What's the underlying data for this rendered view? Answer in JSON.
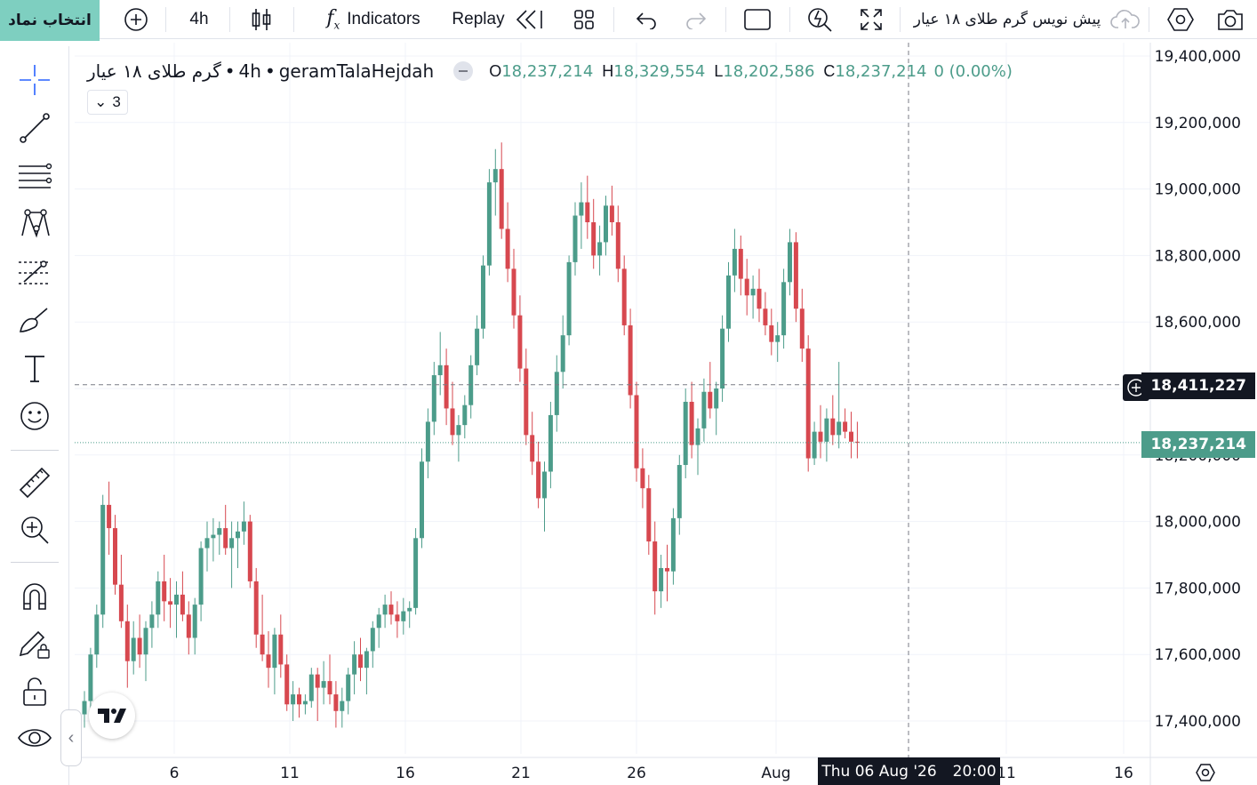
{
  "topbar": {
    "select_symbol": "انتخاب نماد",
    "interval": "4h",
    "indicators": "Indicators",
    "replay": "Replay",
    "layout_name": "پیش نویس گرم طلای ۱۸ عیار"
  },
  "legend": {
    "symbol_fa": "گرم طلای ۱۸ عیار",
    "symbol_sep": "•",
    "interval": "4h",
    "ticker": "geramTalaHejdah",
    "o_label": "O",
    "o_value": "18,237,214",
    "h_label": "H",
    "h_value": "18,329,554",
    "l_label": "L",
    "l_value": "18,202,586",
    "c_label": "C",
    "c_value": "18,237,214",
    "change": "0 (0.00%)",
    "collapsed_count": "3"
  },
  "price_scale": {
    "labels": [
      "19,400,000",
      "19,200,000",
      "19,000,000",
      "18,800,000",
      "18,600,000",
      "18,400,000",
      "18,200,000",
      "18,000,000",
      "17,800,000",
      "17,600,000",
      "17,400,000"
    ],
    "crosshair_price": "18,411,227",
    "last_price": "18,237,214"
  },
  "time_scale": {
    "labels": [
      "6",
      "11",
      "16",
      "21",
      "26",
      "Aug",
      "11",
      "16"
    ],
    "crosshair_date": "Thu 06 Aug '26",
    "crosshair_time": "20:00"
  },
  "colors": {
    "up": "#4c9c8a",
    "down": "#d7484f",
    "accent": "#7ecfc0",
    "crosshair": "#131722"
  },
  "chart_data": {
    "type": "candlestick",
    "title": "geramTalaHejdah",
    "interval": "4h",
    "ylim": [
      17300000,
      19450000
    ],
    "x_tick_labels": [
      "6",
      "11",
      "16",
      "21",
      "26",
      "Aug",
      "11",
      "16"
    ],
    "candles": [
      [
        17420000,
        17490000,
        17380000,
        17460000
      ],
      [
        17460000,
        17620000,
        17420000,
        17600000
      ],
      [
        17600000,
        17750000,
        17560000,
        17720000
      ],
      [
        17720000,
        18080000,
        17680000,
        18050000
      ],
      [
        18050000,
        18120000,
        17900000,
        17980000
      ],
      [
        17980000,
        18020000,
        17780000,
        17810000
      ],
      [
        17810000,
        17900000,
        17680000,
        17700000
      ],
      [
        17700000,
        17750000,
        17500000,
        17580000
      ],
      [
        17580000,
        17700000,
        17540000,
        17650000
      ],
      [
        17650000,
        17720000,
        17560000,
        17600000
      ],
      [
        17600000,
        17700000,
        17520000,
        17680000
      ],
      [
        17680000,
        17760000,
        17620000,
        17720000
      ],
      [
        17720000,
        17850000,
        17680000,
        17820000
      ],
      [
        17820000,
        17900000,
        17700000,
        17760000
      ],
      [
        17760000,
        17830000,
        17680000,
        17750000
      ],
      [
        17750000,
        17820000,
        17650000,
        17780000
      ],
      [
        17780000,
        17850000,
        17700000,
        17720000
      ],
      [
        17720000,
        17760000,
        17600000,
        17650000
      ],
      [
        17650000,
        17770000,
        17600000,
        17750000
      ],
      [
        17750000,
        17940000,
        17700000,
        17920000
      ],
      [
        17920000,
        18000000,
        17850000,
        17950000
      ],
      [
        17950000,
        18010000,
        17880000,
        17960000
      ],
      [
        17960000,
        18000000,
        17900000,
        17980000
      ],
      [
        17980000,
        18050000,
        17900000,
        17920000
      ],
      [
        17920000,
        18000000,
        17800000,
        17950000
      ],
      [
        17950000,
        18000000,
        17860000,
        17970000
      ],
      [
        17970000,
        18060000,
        17930000,
        18000000
      ],
      [
        18000000,
        18020000,
        17800000,
        17820000
      ],
      [
        17820000,
        17860000,
        17620000,
        17660000
      ],
      [
        17660000,
        17780000,
        17580000,
        17600000
      ],
      [
        17600000,
        17670000,
        17500000,
        17560000
      ],
      [
        17560000,
        17680000,
        17480000,
        17660000
      ],
      [
        17660000,
        17720000,
        17530000,
        17570000
      ],
      [
        17570000,
        17600000,
        17430000,
        17450000
      ],
      [
        17450000,
        17520000,
        17400000,
        17480000
      ],
      [
        17480000,
        17500000,
        17410000,
        17450000
      ],
      [
        17450000,
        17480000,
        17420000,
        17460000
      ],
      [
        17460000,
        17560000,
        17440000,
        17540000
      ],
      [
        17540000,
        17560000,
        17400000,
        17500000
      ],
      [
        17500000,
        17580000,
        17450000,
        17520000
      ],
      [
        17520000,
        17600000,
        17450000,
        17480000
      ],
      [
        17480000,
        17520000,
        17380000,
        17430000
      ],
      [
        17430000,
        17500000,
        17380000,
        17460000
      ],
      [
        17460000,
        17560000,
        17420000,
        17540000
      ],
      [
        17540000,
        17640000,
        17480000,
        17600000
      ],
      [
        17600000,
        17650000,
        17520000,
        17560000
      ],
      [
        17560000,
        17620000,
        17480000,
        17610000
      ],
      [
        17610000,
        17700000,
        17560000,
        17680000
      ],
      [
        17680000,
        17740000,
        17620000,
        17720000
      ],
      [
        17720000,
        17780000,
        17680000,
        17750000
      ],
      [
        17750000,
        17790000,
        17690000,
        17720000
      ],
      [
        17720000,
        17760000,
        17650000,
        17700000
      ],
      [
        17700000,
        17770000,
        17660000,
        17730000
      ],
      [
        17730000,
        17760000,
        17680000,
        17740000
      ],
      [
        17740000,
        17980000,
        17720000,
        17950000
      ],
      [
        17950000,
        18220000,
        17920000,
        18180000
      ],
      [
        18180000,
        18340000,
        18130000,
        18300000
      ],
      [
        18300000,
        18480000,
        18260000,
        18440000
      ],
      [
        18440000,
        18570000,
        18380000,
        18470000
      ],
      [
        18470000,
        18520000,
        18290000,
        18340000
      ],
      [
        18340000,
        18420000,
        18230000,
        18260000
      ],
      [
        18260000,
        18320000,
        18180000,
        18290000
      ],
      [
        18290000,
        18380000,
        18250000,
        18350000
      ],
      [
        18350000,
        18500000,
        18310000,
        18470000
      ],
      [
        18470000,
        18620000,
        18440000,
        18580000
      ],
      [
        18580000,
        18800000,
        18550000,
        18770000
      ],
      [
        18770000,
        19060000,
        18740000,
        19020000
      ],
      [
        19020000,
        19120000,
        18920000,
        19060000
      ],
      [
        19060000,
        19140000,
        18850000,
        18880000
      ],
      [
        18880000,
        18960000,
        18720000,
        18760000
      ],
      [
        18760000,
        18820000,
        18580000,
        18620000
      ],
      [
        18620000,
        18680000,
        18420000,
        18460000
      ],
      [
        18460000,
        18520000,
        18230000,
        18260000
      ],
      [
        18260000,
        18330000,
        18140000,
        18180000
      ],
      [
        18180000,
        18240000,
        18040000,
        18070000
      ],
      [
        18070000,
        18180000,
        17970000,
        18150000
      ],
      [
        18150000,
        18360000,
        18100000,
        18320000
      ],
      [
        18320000,
        18500000,
        18270000,
        18450000
      ],
      [
        18450000,
        18620000,
        18400000,
        18560000
      ],
      [
        18560000,
        18800000,
        18530000,
        18780000
      ],
      [
        18780000,
        18960000,
        18740000,
        18920000
      ],
      [
        18920000,
        19020000,
        18820000,
        18960000
      ],
      [
        18960000,
        19040000,
        18850000,
        18900000
      ],
      [
        18900000,
        18970000,
        18760000,
        18800000
      ],
      [
        18800000,
        18890000,
        18740000,
        18840000
      ],
      [
        18840000,
        18980000,
        18800000,
        18950000
      ],
      [
        18950000,
        19010000,
        18860000,
        18900000
      ],
      [
        18900000,
        18950000,
        18720000,
        18760000
      ],
      [
        18760000,
        18800000,
        18560000,
        18590000
      ],
      [
        18590000,
        18640000,
        18340000,
        18380000
      ],
      [
        18380000,
        18420000,
        18120000,
        18160000
      ],
      [
        18160000,
        18220000,
        18040000,
        18100000
      ],
      [
        18100000,
        18140000,
        17900000,
        17940000
      ],
      [
        17940000,
        18000000,
        17720000,
        17790000
      ],
      [
        17790000,
        17900000,
        17740000,
        17860000
      ],
      [
        17860000,
        17930000,
        17760000,
        17850000
      ],
      [
        17850000,
        18040000,
        17810000,
        18010000
      ],
      [
        18010000,
        18200000,
        17960000,
        18170000
      ],
      [
        18170000,
        18400000,
        18130000,
        18360000
      ],
      [
        18360000,
        18420000,
        18190000,
        18230000
      ],
      [
        18230000,
        18310000,
        18140000,
        18280000
      ],
      [
        18280000,
        18430000,
        18240000,
        18390000
      ],
      [
        18390000,
        18480000,
        18310000,
        18340000
      ],
      [
        18340000,
        18420000,
        18260000,
        18400000
      ],
      [
        18400000,
        18620000,
        18360000,
        18580000
      ],
      [
        18580000,
        18780000,
        18540000,
        18740000
      ],
      [
        18740000,
        18880000,
        18690000,
        18820000
      ],
      [
        18820000,
        18860000,
        18680000,
        18730000
      ],
      [
        18730000,
        18790000,
        18620000,
        18680000
      ],
      [
        18680000,
        18740000,
        18610000,
        18700000
      ],
      [
        18700000,
        18760000,
        18600000,
        18640000
      ],
      [
        18640000,
        18690000,
        18560000,
        18590000
      ],
      [
        18590000,
        18640000,
        18500000,
        18540000
      ],
      [
        18540000,
        18600000,
        18480000,
        18560000
      ],
      [
        18560000,
        18760000,
        18520000,
        18720000
      ],
      [
        18720000,
        18880000,
        18680000,
        18840000
      ],
      [
        18840000,
        18870000,
        18600000,
        18640000
      ],
      [
        18640000,
        18700000,
        18480000,
        18520000
      ],
      [
        18520000,
        18560000,
        18150000,
        18190000
      ],
      [
        18190000,
        18300000,
        18170000,
        18270000
      ],
      [
        18270000,
        18350000,
        18190000,
        18240000
      ],
      [
        18240000,
        18340000,
        18180000,
        18310000
      ],
      [
        18310000,
        18380000,
        18230000,
        18260000
      ],
      [
        18260000,
        18480000,
        18220000,
        18300000
      ],
      [
        18300000,
        18340000,
        18250000,
        18270000
      ],
      [
        18270000,
        18330000,
        18190000,
        18240000
      ],
      [
        18240000,
        18300000,
        18190000,
        18237214
      ]
    ]
  }
}
